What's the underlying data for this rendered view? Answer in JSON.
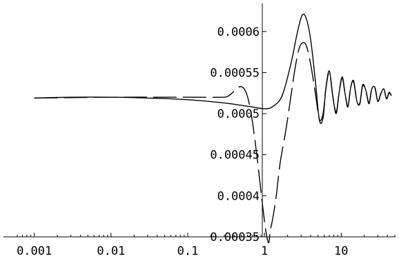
{
  "chart_data": {
    "type": "line",
    "title": "",
    "xlabel": "",
    "ylabel": "",
    "x_scale": "log",
    "xlim": [
      0.0006,
      50
    ],
    "ylim": [
      0.00035,
      0.00063
    ],
    "x_ticks": [
      {
        "value": 0.001,
        "label": "0.001"
      },
      {
        "value": 0.01,
        "label": "0.01"
      },
      {
        "value": 0.1,
        "label": "0.1"
      },
      {
        "value": 1,
        "label": "1"
      },
      {
        "value": 10,
        "label": "10"
      }
    ],
    "y_ticks": [
      {
        "value": 0.00035,
        "label": "0.00035"
      },
      {
        "value": 0.0004,
        "label": "0.0004"
      },
      {
        "value": 0.00045,
        "label": "0.00045"
      },
      {
        "value": 0.0005,
        "label": "0.0005"
      },
      {
        "value": 0.00055,
        "label": "0.00055"
      },
      {
        "value": 0.0006,
        "label": "0.0006"
      }
    ],
    "grid": false,
    "legend": "none",
    "series": [
      {
        "style": "solid",
        "x": [
          0.001,
          0.003,
          0.01,
          0.03,
          0.1,
          0.3,
          0.6,
          1.0,
          1.3,
          1.7,
          2.2,
          2.7,
          3.1,
          3.5,
          4.0,
          4.6,
          5.2,
          5.8,
          6.3,
          7.0,
          7.8,
          8.6,
          9.4,
          10.3,
          11.2,
          12.2,
          13.3,
          14.5,
          16,
          17.5,
          19,
          21,
          23,
          25,
          27.5,
          30,
          33,
          36,
          39,
          42,
          45
        ],
        "y": [
          0.000519,
          0.00052,
          0.00052,
          0.000519,
          0.000517,
          0.000513,
          0.000509,
          0.000506,
          0.000509,
          0.000522,
          0.00056,
          0.0006,
          0.00062,
          0.000616,
          0.00059,
          0.00054,
          0.000492,
          0.000495,
          0.00053,
          0.000552,
          0.00052,
          0.0005,
          0.000526,
          0.000545,
          0.000525,
          0.000508,
          0.000532,
          0.00054,
          0.000515,
          0.000512,
          0.000535,
          0.000528,
          0.000512,
          0.00053,
          0.000532,
          0.000515,
          0.000525,
          0.00053,
          0.000518,
          0.000526,
          0.000522
        ]
      },
      {
        "style": "dashed",
        "x": [
          0.001,
          0.01,
          0.1,
          0.3,
          0.6,
          1.05,
          1.2,
          1.4,
          1.6,
          1.9,
          2.2,
          2.5,
          2.8,
          3.1,
          3.5,
          4.0,
          4.6,
          5.2,
          5.8,
          6.3,
          7.0,
          7.8,
          8.6,
          9.4,
          10.3,
          11.2,
          12.2,
          13.3,
          14.5,
          16,
          17.5,
          19,
          21,
          23,
          25,
          27.5,
          30,
          33,
          36,
          39,
          42,
          45
        ],
        "y": [
          0.000519,
          0.00052,
          0.00052,
          0.00052,
          0.000521,
          0.000355,
          0.00036,
          0.000395,
          0.00044,
          0.00048,
          0.00052,
          0.000555,
          0.000578,
          0.000586,
          0.000583,
          0.00056,
          0.000525,
          0.000493,
          0.0005,
          0.00053,
          0.00055,
          0.00052,
          0.000502,
          0.000526,
          0.000543,
          0.000525,
          0.000509,
          0.000532,
          0.000539,
          0.000515,
          0.000513,
          0.000534,
          0.000527,
          0.000513,
          0.00053,
          0.000531,
          0.000515,
          0.000525,
          0.000529,
          0.000518,
          0.000525,
          0.000522
        ]
      }
    ]
  }
}
